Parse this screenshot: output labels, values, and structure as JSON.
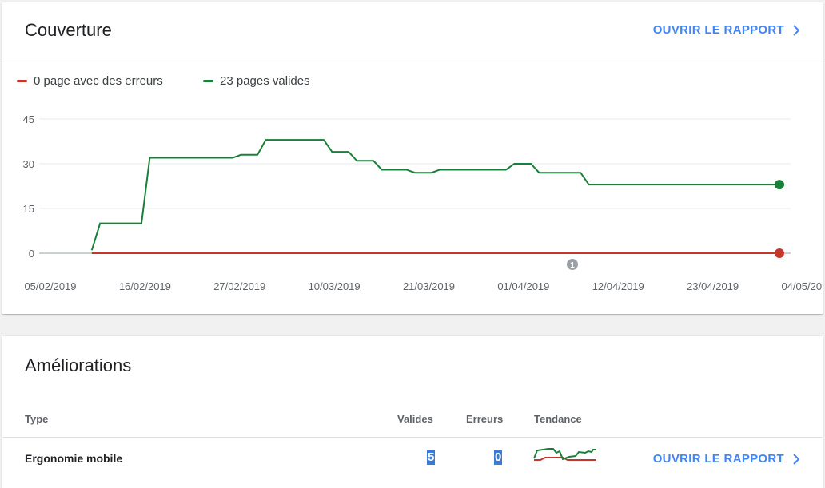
{
  "coverage": {
    "title": "Couverture",
    "open_report": "OUVRIR LE RAPPORT",
    "legend": [
      {
        "label": "0 page avec des erreurs",
        "color": "#c5372c"
      },
      {
        "label": "23 pages valides",
        "color": "#188038"
      }
    ],
    "annotation_badge": "1"
  },
  "chart_data": {
    "type": "line",
    "x_tick_labels": [
      "05/02/2019",
      "16/02/2019",
      "27/02/2019",
      "10/03/2019",
      "21/03/2019",
      "01/04/2019",
      "12/04/2019",
      "23/04/2019",
      "04/05/2019"
    ],
    "y_tick_labels": [
      "45",
      "30",
      "15",
      "0"
    ],
    "ylim": [
      0,
      45
    ],
    "x_range_days": [
      0,
      88
    ],
    "grid": true,
    "series": [
      {
        "name": "0 page avec des erreurs",
        "color": "#c5372c",
        "x": [
          5,
          88
        ],
        "y": [
          0,
          0
        ]
      },
      {
        "name": "23 pages valides",
        "color": "#188038",
        "x": [
          5,
          6,
          11,
          12,
          22,
          23,
          25,
          26,
          33,
          34,
          36,
          37,
          39,
          40,
          43,
          44,
          46,
          47,
          55,
          56,
          58,
          59,
          64,
          65,
          65.5,
          88
        ],
        "y": [
          1,
          10,
          10,
          32,
          32,
          33,
          33,
          38,
          38,
          34,
          34,
          31,
          31,
          28,
          28,
          27,
          27,
          28,
          28,
          30,
          30,
          27,
          27,
          23,
          23,
          23
        ]
      }
    ]
  },
  "improvements": {
    "title": "Améliorations",
    "columns": {
      "type": "Type",
      "valid": "Valides",
      "errors": "Erreurs",
      "trend": "Tendance"
    },
    "rows": [
      {
        "type": "Ergonomie mobile",
        "valid": "5",
        "errors": "0",
        "open_report": "OUVRIR LE RAPPORT"
      }
    ]
  }
}
